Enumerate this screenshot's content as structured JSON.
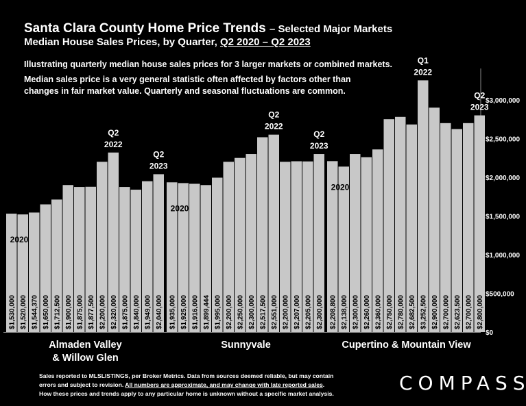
{
  "header": {
    "title_main": "Santa Clara County Home Price Trends",
    "title_suffix": "– Selected Major Markets",
    "subtitle_prefix": "Median House Sales Prices, by Quarter,",
    "subtitle_range": "Q2 2020 – Q2 2023",
    "note1": "Illustrating quarterly median house sales prices for 3 larger markets or combined markets.",
    "note2_line1": "Median sales price is a very general statistic often affected by factors other than",
    "note2_line2": "changes in fair market value. Quarterly and seasonal fluctuations are common."
  },
  "footer": {
    "line1": "Sales reported to MLSLISTINGS, per Broker Metrics. Data from sources deemed reliable, but may contain",
    "line2_prefix": "errors and subject to revision.",
    "line2_underlined": "All numbers are approximate, and may change with late reported sales",
    "line2_suffix": ".",
    "line3": "How these prices and trends apply to any particular home is unknown without a specific market analysis.",
    "logo": "COMPASS"
  },
  "chart_data": {
    "type": "bar",
    "ylim": [
      0,
      3300000
    ],
    "yticks": [
      0,
      500000,
      1000000,
      1500000,
      2000000,
      2500000,
      3000000
    ],
    "ytick_labels": [
      "$0",
      "$500,000",
      "$1,000,000",
      "$1,500,000",
      "$2,000,000",
      "$2,500,000",
      "$3,000,000"
    ],
    "grid": false,
    "bar_color": "#c8c8c8",
    "groups": [
      {
        "name_lines": [
          "Almaden Valley",
          "& Willow Glen"
        ],
        "values": [
          1530000,
          1520000,
          1544370,
          1650000,
          1712500,
          1900000,
          1875000,
          1877500,
          2200000,
          2320000,
          1875000,
          1840000,
          1949000,
          2040000
        ],
        "value_labels": [
          "$1,530,000",
          "$1,520,000",
          "$1,544,370",
          "$1,650,000",
          "$1,712,500",
          "$1,900,000",
          "$1,875,000",
          "$1,877,500",
          "$2,200,000",
          "$2,320,000",
          "$1,875,000",
          "$1,840,000",
          "$1,949,000",
          "$2,040,000"
        ],
        "annotations": [
          {
            "bar": 0,
            "lines": [
              "2020"
            ],
            "where": "inside"
          },
          {
            "bar": 9,
            "lines": [
              "Q2",
              "2022"
            ],
            "where": "above"
          },
          {
            "bar": 13,
            "lines": [
              "Q2",
              "2023"
            ],
            "where": "above"
          }
        ]
      },
      {
        "name_lines": [
          "Sunnyvale"
        ],
        "values": [
          1935000,
          1925000,
          1916000,
          1899444,
          1995000,
          2200000,
          2250000,
          2300000,
          2517500,
          2551000,
          2200000,
          2207000,
          2205000,
          2300000
        ],
        "value_labels": [
          "$1,935,000",
          "$1,925,000",
          "$1,916,000",
          "$1,899,444",
          "$1,995,000",
          "$2,200,000",
          "$2,250,000",
          "$2,300,000",
          "$2,517,500",
          "$2,551,000",
          "$2,200,000",
          "$2,207,000",
          "$2,205,000",
          "$2,300,000"
        ],
        "annotations": [
          {
            "bar": 0,
            "lines": [
              "2020"
            ],
            "where": "inside"
          },
          {
            "bar": 9,
            "lines": [
              "Q2",
              "2022"
            ],
            "where": "above"
          },
          {
            "bar": 13,
            "lines": [
              "Q2",
              "2023"
            ],
            "where": "above"
          }
        ]
      },
      {
        "name_lines": [
          "Cupertino & Mountain View"
        ],
        "values": [
          2208800,
          2138000,
          2300000,
          2260000,
          2360000,
          2750000,
          2780000,
          2682500,
          3252500,
          2900000,
          2700000,
          2623500,
          2700000,
          2800000
        ],
        "value_labels": [
          "$2,208,800",
          "$2,138,000",
          "$2,300,000",
          "$2,260,000",
          "$2,360,000",
          "$2,750,000",
          "$2,780,000",
          "$2,682,500",
          "$3,252,500",
          "$2,900,000",
          "$2,700,000",
          "$2,623,500",
          "$2,700,000",
          "$2,800,000"
        ],
        "annotations": [
          {
            "bar": 0,
            "lines": [
              "2020"
            ],
            "where": "inside"
          },
          {
            "bar": 8,
            "lines": [
              "Q1",
              "2022"
            ],
            "where": "above"
          },
          {
            "bar": 13,
            "lines": [
              "Q2",
              "2023"
            ],
            "where": "above"
          }
        ]
      }
    ]
  }
}
